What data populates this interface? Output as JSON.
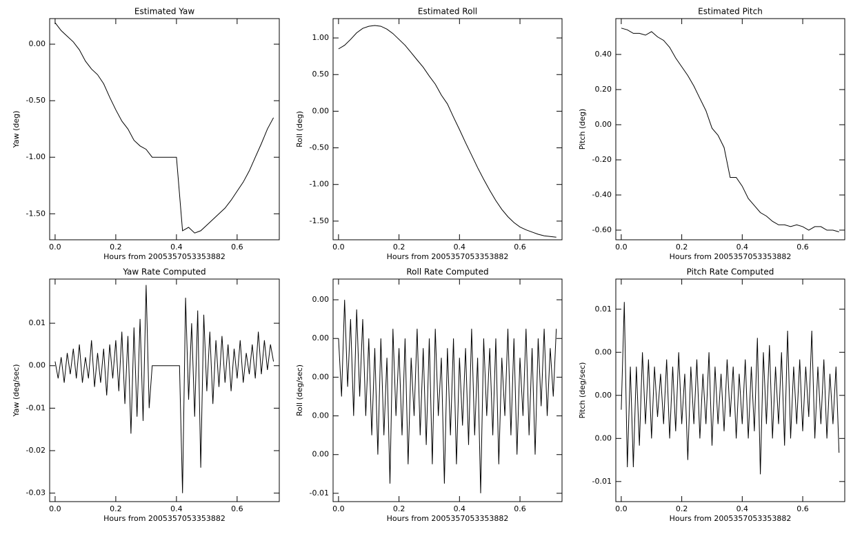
{
  "chart_data": [
    {
      "type": "line",
      "title": "Estimated Yaw",
      "xlabel": "Hours from 2005357053353882",
      "ylabel": "Yaw (deg)",
      "color": "#000000",
      "xlim": [
        -0.018,
        0.739
      ],
      "ylim": [
        -1.73,
        0.226
      ],
      "xticks": [
        {
          "value": 0,
          "label": "0.0"
        },
        0.2,
        0.4,
        0.6
      ],
      "yticks": [
        {
          "value": 0,
          "label": "0.00"
        },
        {
          "value": -0.5,
          "label": "-0.50"
        },
        {
          "value": -1,
          "label": "-1.00"
        },
        {
          "value": -1.5,
          "label": "-1.50"
        }
      ],
      "x": [
        0,
        0.02,
        0.04,
        0.06,
        0.08,
        0.1,
        0.12,
        0.14,
        0.16,
        0.18,
        0.2,
        0.22,
        0.24,
        0.26,
        0.28,
        0.3,
        0.32,
        0.34,
        0.36,
        0.38,
        0.4,
        0.42,
        0.44,
        0.46,
        0.48,
        0.5,
        0.52,
        0.54,
        0.56,
        0.58,
        0.6,
        0.62,
        0.64,
        0.66,
        0.68,
        0.7,
        0.72
      ],
      "values": [
        0.19,
        0.12,
        0.07,
        0.02,
        -0.05,
        -0.15,
        -0.22,
        -0.27,
        -0.35,
        -0.47,
        -0.58,
        -0.68,
        -0.75,
        -0.85,
        -0.9,
        -0.93,
        -1.0,
        -1.0,
        -1.0,
        -1.0,
        -1.0,
        -1.65,
        -1.62,
        -1.67,
        -1.65,
        -1.6,
        -1.55,
        -1.5,
        -1.45,
        -1.38,
        -1.3,
        -1.22,
        -1.12,
        -1.0,
        -0.88,
        -0.75,
        -0.65
      ]
    },
    {
      "type": "line",
      "title": "Estimated Roll",
      "xlabel": "Hours from 2005357053353882",
      "ylabel": "Roll (deg)",
      "color": "#000000",
      "xlim": [
        -0.018,
        0.739
      ],
      "ylim": [
        -1.755,
        1.264
      ],
      "xticks": [
        {
          "value": 0,
          "label": "0.0"
        },
        0.2,
        0.4,
        0.6
      ],
      "yticks": [
        {
          "value": 1,
          "label": "1.00"
        },
        {
          "value": 0.5,
          "label": "0.50"
        },
        {
          "value": 0,
          "label": "0.00"
        },
        {
          "value": -0.5,
          "label": "-0.50"
        },
        {
          "value": -1,
          "label": "-1.00"
        },
        {
          "value": -1.5,
          "label": "-1.50"
        }
      ],
      "x": [
        0,
        0.02,
        0.04,
        0.06,
        0.08,
        0.1,
        0.12,
        0.14,
        0.16,
        0.18,
        0.2,
        0.22,
        0.24,
        0.26,
        0.28,
        0.3,
        0.32,
        0.34,
        0.36,
        0.38,
        0.4,
        0.42,
        0.44,
        0.46,
        0.48,
        0.5,
        0.52,
        0.54,
        0.56,
        0.58,
        0.6,
        0.62,
        0.64,
        0.66,
        0.68,
        0.7,
        0.72
      ],
      "values": [
        0.85,
        0.9,
        0.98,
        1.07,
        1.13,
        1.16,
        1.17,
        1.16,
        1.12,
        1.06,
        0.98,
        0.9,
        0.8,
        0.7,
        0.6,
        0.48,
        0.37,
        0.22,
        0.1,
        -0.08,
        -0.25,
        -0.43,
        -0.6,
        -0.77,
        -0.93,
        -1.08,
        -1.22,
        -1.34,
        -1.44,
        -1.52,
        -1.58,
        -1.62,
        -1.65,
        -1.68,
        -1.7,
        -1.71,
        -1.72
      ]
    },
    {
      "type": "line",
      "title": "Estimated Pitch",
      "xlabel": "Hours from 2005357053353882",
      "ylabel": "Pitch (deg)",
      "color": "#000000",
      "xlim": [
        -0.018,
        0.739
      ],
      "ylim": [
        -0.655,
        0.604
      ],
      "xticks": [
        {
          "value": 0,
          "label": "0.0"
        },
        0.2,
        0.4,
        0.6
      ],
      "yticks": [
        {
          "value": 0.4,
          "label": "0.40"
        },
        {
          "value": 0.2,
          "label": "0.20"
        },
        {
          "value": 0,
          "label": "0.00"
        },
        {
          "value": -0.2,
          "label": "-0.20"
        },
        {
          "value": -0.4,
          "label": "-0.40"
        },
        {
          "value": -0.6,
          "label": "-0.60"
        }
      ],
      "x": [
        0,
        0.02,
        0.04,
        0.06,
        0.08,
        0.1,
        0.12,
        0.14,
        0.16,
        0.18,
        0.2,
        0.22,
        0.24,
        0.26,
        0.28,
        0.3,
        0.32,
        0.34,
        0.36,
        0.38,
        0.4,
        0.42,
        0.44,
        0.46,
        0.48,
        0.5,
        0.52,
        0.54,
        0.56,
        0.58,
        0.6,
        0.62,
        0.64,
        0.66,
        0.68,
        0.7,
        0.72
      ],
      "values": [
        0.55,
        0.54,
        0.52,
        0.52,
        0.51,
        0.53,
        0.5,
        0.48,
        0.44,
        0.38,
        0.33,
        0.28,
        0.22,
        0.15,
        0.08,
        -0.02,
        -0.06,
        -0.13,
        -0.3,
        -0.3,
        -0.35,
        -0.42,
        -0.46,
        -0.5,
        -0.52,
        -0.55,
        -0.57,
        -0.57,
        -0.58,
        -0.57,
        -0.58,
        -0.6,
        -0.58,
        -0.58,
        -0.6,
        -0.6,
        -0.61
      ]
    },
    {
      "type": "line",
      "title": "Yaw Rate Computed",
      "xlabel": "Hours from 2005357053353882",
      "ylabel": "Yaw (deg/sec)",
      "color": "#000000",
      "xlim": [
        -0.018,
        0.739
      ],
      "ylim": [
        -0.032,
        0.0204
      ],
      "xticks": [
        {
          "value": 0,
          "label": "0.0"
        },
        0.2,
        0.4,
        0.6
      ],
      "yticks": [
        0.01,
        {
          "value": 0,
          "label": "0.00"
        },
        -0.01,
        -0.02,
        -0.03
      ],
      "x": [
        0,
        0.01,
        0.02,
        0.03,
        0.04,
        0.05,
        0.06,
        0.07,
        0.08,
        0.09,
        0.1,
        0.11,
        0.12,
        0.13,
        0.14,
        0.15,
        0.16,
        0.17,
        0.18,
        0.19,
        0.2,
        0.21,
        0.22,
        0.23,
        0.24,
        0.25,
        0.26,
        0.27,
        0.28,
        0.29,
        0.3,
        0.31,
        0.32,
        0.33,
        0.34,
        0.35,
        0.36,
        0.37,
        0.38,
        0.39,
        0.4,
        0.41,
        0.42,
        0.43,
        0.44,
        0.45,
        0.46,
        0.47,
        0.48,
        0.49,
        0.5,
        0.51,
        0.52,
        0.53,
        0.54,
        0.55,
        0.56,
        0.57,
        0.58,
        0.59,
        0.6,
        0.61,
        0.62,
        0.63,
        0.64,
        0.65,
        0.66,
        0.67,
        0.68,
        0.69,
        0.7,
        0.71,
        0.72
      ],
      "values": [
        0.001,
        -0.003,
        0.002,
        -0.004,
        0.003,
        -0.002,
        0.004,
        -0.003,
        0.005,
        -0.004,
        0.002,
        -0.003,
        0.006,
        -0.005,
        0.003,
        -0.004,
        0.004,
        -0.007,
        0.005,
        -0.003,
        0.006,
        -0.006,
        0.008,
        -0.009,
        0.007,
        -0.016,
        0.009,
        -0.012,
        0.011,
        -0.013,
        0.019,
        -0.01,
        0,
        0,
        0,
        0,
        0,
        0,
        0,
        0,
        0,
        0,
        -0.03,
        0.016,
        -0.008,
        0.01,
        -0.012,
        0.013,
        -0.024,
        0.012,
        -0.006,
        0.008,
        -0.009,
        0.006,
        -0.005,
        0.007,
        -0.004,
        0.005,
        -0.006,
        0.004,
        -0.003,
        0.006,
        -0.004,
        0.003,
        -0.002,
        0.005,
        -0.003,
        0.008,
        -0.002,
        0.006,
        -0.001,
        0.005,
        0.001
      ]
    },
    {
      "type": "line",
      "title": "Roll Rate Computed",
      "xlabel": "Hours from 2005357053353882",
      "ylabel": "Roll (deg/sec)",
      "color": "#000000",
      "xlim": [
        -0.018,
        0.739
      ],
      "ylim": [
        -0.00643,
        0.00507
      ],
      "xticks": [
        {
          "value": 0,
          "label": "0.0"
        },
        0.2,
        0.4,
        0.6
      ],
      "yticks": [
        {
          "value": 0.004,
          "label": "0.00"
        },
        {
          "value": 0.002,
          "label": "0.00"
        },
        {
          "value": 0,
          "label": "0.00"
        },
        {
          "value": -0.002,
          "label": "0.00"
        },
        {
          "value": -0.004,
          "label": "0.00"
        },
        {
          "value": -0.006,
          "label": "-0.01"
        }
      ],
      "x": [
        0,
        0.01,
        0.02,
        0.03,
        0.04,
        0.05,
        0.06,
        0.07,
        0.08,
        0.09,
        0.1,
        0.11,
        0.12,
        0.13,
        0.14,
        0.15,
        0.16,
        0.17,
        0.18,
        0.19,
        0.2,
        0.21,
        0.22,
        0.23,
        0.24,
        0.25,
        0.26,
        0.27,
        0.28,
        0.29,
        0.3,
        0.31,
        0.32,
        0.33,
        0.34,
        0.35,
        0.36,
        0.37,
        0.38,
        0.39,
        0.4,
        0.41,
        0.42,
        0.43,
        0.44,
        0.45,
        0.46,
        0.47,
        0.48,
        0.49,
        0.5,
        0.51,
        0.52,
        0.53,
        0.54,
        0.55,
        0.56,
        0.57,
        0.58,
        0.59,
        0.6,
        0.61,
        0.62,
        0.63,
        0.64,
        0.65,
        0.66,
        0.67,
        0.68,
        0.69,
        0.7,
        0.71,
        0.72
      ],
      "values": [
        0.002,
        -0.001,
        0.004,
        -0.0005,
        0.003,
        -0.002,
        0.0035,
        -0.001,
        0.003,
        -0.002,
        0.002,
        -0.003,
        0.0015,
        -0.004,
        0.002,
        -0.003,
        0.001,
        -0.0055,
        0.0025,
        -0.002,
        0.0015,
        -0.003,
        0.002,
        -0.0045,
        0.001,
        -0.002,
        0.0025,
        -0.003,
        0.0015,
        -0.0035,
        0.002,
        -0.0045,
        0.0025,
        -0.002,
        0.001,
        -0.0055,
        0.0015,
        -0.003,
        0.002,
        -0.0045,
        0.001,
        -0.0025,
        0.0015,
        -0.0035,
        0.0025,
        -0.003,
        0.001,
        -0.006,
        0.002,
        -0.002,
        0.0015,
        -0.003,
        0.002,
        -0.0045,
        0.001,
        -0.002,
        0.0025,
        -0.003,
        0.002,
        -0.004,
        0.001,
        -0.002,
        0.0025,
        -0.003,
        0.0015,
        -0.004,
        0.002,
        -0.0015,
        0.0025,
        -0.002,
        0.0015,
        -0.001,
        0.0025
      ]
    },
    {
      "type": "line",
      "title": "Pitch Rate Computed",
      "xlabel": "Hours from 2005357053353882",
      "ylabel": "Pitch (deg/sec)",
      "color": "#000000",
      "xlim": [
        -0.018,
        0.739
      ],
      "ylim": [
        -0.0074,
        0.0081
      ],
      "xticks": [
        {
          "value": 0,
          "label": "0.0"
        },
        0.2,
        0.4,
        0.6
      ],
      "yticks": [
        {
          "value": 0.006,
          "label": "0.01"
        },
        {
          "value": 0.003,
          "label": "0.00"
        },
        {
          "value": 0,
          "label": "0.00"
        },
        {
          "value": -0.003,
          "label": "0.00"
        },
        {
          "value": -0.006,
          "label": "-0.01"
        }
      ],
      "x": [
        0,
        0.01,
        0.02,
        0.03,
        0.04,
        0.05,
        0.06,
        0.07,
        0.08,
        0.09,
        0.1,
        0.11,
        0.12,
        0.13,
        0.14,
        0.15,
        0.16,
        0.17,
        0.18,
        0.19,
        0.2,
        0.21,
        0.22,
        0.23,
        0.24,
        0.25,
        0.26,
        0.27,
        0.28,
        0.29,
        0.3,
        0.31,
        0.32,
        0.33,
        0.34,
        0.35,
        0.36,
        0.37,
        0.38,
        0.39,
        0.4,
        0.41,
        0.42,
        0.43,
        0.44,
        0.45,
        0.46,
        0.47,
        0.48,
        0.49,
        0.5,
        0.51,
        0.52,
        0.53,
        0.54,
        0.55,
        0.56,
        0.57,
        0.58,
        0.59,
        0.6,
        0.61,
        0.62,
        0.63,
        0.64,
        0.65,
        0.66,
        0.67,
        0.68,
        0.69,
        0.7,
        0.71,
        0.72
      ],
      "values": [
        -0.001,
        0.0065,
        -0.005,
        0.002,
        -0.005,
        0.002,
        -0.0035,
        0.003,
        -0.002,
        0.0025,
        -0.003,
        0.002,
        -0.0015,
        0.0015,
        -0.002,
        0.0025,
        -0.003,
        0.002,
        -0.0025,
        0.003,
        -0.002,
        0.0015,
        -0.0045,
        0.002,
        -0.002,
        0.0025,
        -0.003,
        0.0015,
        -0.002,
        0.003,
        -0.0035,
        0.002,
        -0.002,
        0.0015,
        -0.0025,
        0.0025,
        -0.0015,
        0.002,
        -0.003,
        0.0015,
        -0.002,
        0.0025,
        -0.003,
        0.002,
        -0.0025,
        0.004,
        -0.0055,
        0.003,
        -0.002,
        0.0035,
        -0.003,
        0.002,
        -0.002,
        0.003,
        -0.0035,
        0.0045,
        -0.003,
        0.002,
        -0.002,
        0.0025,
        -0.0025,
        0.002,
        -0.0015,
        0.0045,
        -0.003,
        0.002,
        -0.002,
        0.0025,
        -0.003,
        0.0015,
        -0.002,
        0.002,
        -0.004
      ]
    }
  ]
}
